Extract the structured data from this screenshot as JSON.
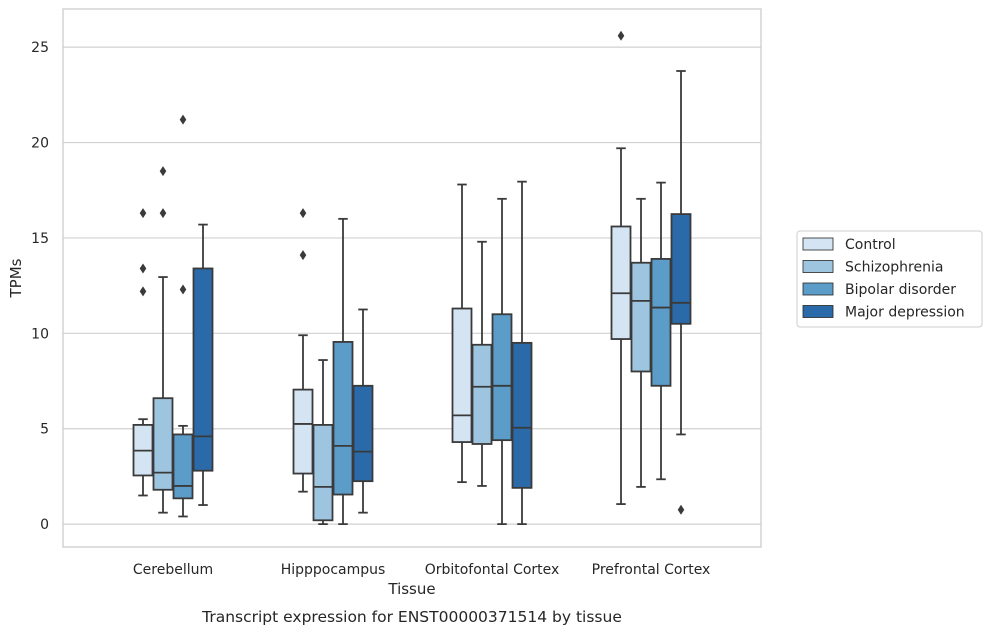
{
  "chart_data": {
    "type": "boxplot",
    "caption": "Transcript expression for ENST00000371514 by tissue",
    "xlabel": "Tissue",
    "ylabel": "TPMs",
    "ylim": [
      -1.2,
      27
    ],
    "yticks": [
      0,
      5,
      10,
      15,
      20,
      25
    ],
    "grid": "horizontal",
    "legend_position": "right",
    "categories": [
      "Cerebellum",
      "Hipppocampus",
      "Orbitofontal Cortex",
      "Prefrontal Cortex"
    ],
    "series": [
      {
        "name": "Control",
        "color": "#d4e4f3",
        "boxes": [
          {
            "whislo": 1.5,
            "q1": 2.55,
            "med": 3.85,
            "q3": 5.2,
            "whishi": 5.5,
            "fliers": [
              16.3,
              13.4,
              12.2
            ]
          },
          {
            "whislo": 1.7,
            "q1": 2.65,
            "med": 5.25,
            "q3": 7.05,
            "whishi": 9.9,
            "fliers": [
              16.3,
              14.1
            ]
          },
          {
            "whislo": 2.2,
            "q1": 4.3,
            "med": 5.7,
            "q3": 11.3,
            "whishi": 17.8,
            "fliers": []
          },
          {
            "whislo": 1.05,
            "q1": 9.7,
            "med": 12.1,
            "q3": 15.6,
            "whishi": 19.7,
            "fliers": [
              25.6
            ]
          }
        ]
      },
      {
        "name": "Schizophrenia",
        "color": "#9ec5e0",
        "boxes": [
          {
            "whislo": 0.6,
            "q1": 1.8,
            "med": 2.7,
            "q3": 6.6,
            "whishi": 12.95,
            "fliers": [
              18.5,
              16.3
            ]
          },
          {
            "whislo": 0.0,
            "q1": 0.2,
            "med": 1.95,
            "q3": 5.2,
            "whishi": 8.6,
            "fliers": []
          },
          {
            "whislo": 2.0,
            "q1": 4.2,
            "med": 7.2,
            "q3": 9.4,
            "whishi": 14.8,
            "fliers": []
          },
          {
            "whislo": 1.95,
            "q1": 8.0,
            "med": 11.7,
            "q3": 13.7,
            "whishi": 17.05,
            "fliers": []
          }
        ]
      },
      {
        "name": "Bipolar disorder",
        "color": "#5b9cc8",
        "boxes": [
          {
            "whislo": 0.4,
            "q1": 1.35,
            "med": 2.0,
            "q3": 4.7,
            "whishi": 5.15,
            "fliers": [
              12.3,
              21.2
            ]
          },
          {
            "whislo": 0.0,
            "q1": 1.55,
            "med": 4.1,
            "q3": 9.55,
            "whishi": 16.0,
            "fliers": []
          },
          {
            "whislo": 0.0,
            "q1": 4.4,
            "med": 7.25,
            "q3": 11.0,
            "whishi": 17.05,
            "fliers": []
          },
          {
            "whislo": 2.35,
            "q1": 7.25,
            "med": 11.35,
            "q3": 13.9,
            "whishi": 17.9,
            "fliers": []
          }
        ]
      },
      {
        "name": "Major depression",
        "color": "#2b6aa8",
        "boxes": [
          {
            "whislo": 1.0,
            "q1": 2.8,
            "med": 4.6,
            "q3": 13.4,
            "whishi": 15.7,
            "fliers": []
          },
          {
            "whislo": 0.6,
            "q1": 2.25,
            "med": 3.8,
            "q3": 7.25,
            "whishi": 11.25,
            "fliers": []
          },
          {
            "whislo": 0.0,
            "q1": 1.9,
            "med": 5.05,
            "q3": 9.5,
            "whishi": 17.95,
            "fliers": []
          },
          {
            "whislo": 4.7,
            "q1": 10.5,
            "med": 11.6,
            "q3": 16.25,
            "whishi": 23.75,
            "fliers": [
              0.75
            ]
          }
        ]
      }
    ]
  },
  "colors": {
    "grid": "#d0d0d0",
    "frame": "#cccccc",
    "line": "#3a3a3a",
    "background": "#ffffff"
  }
}
